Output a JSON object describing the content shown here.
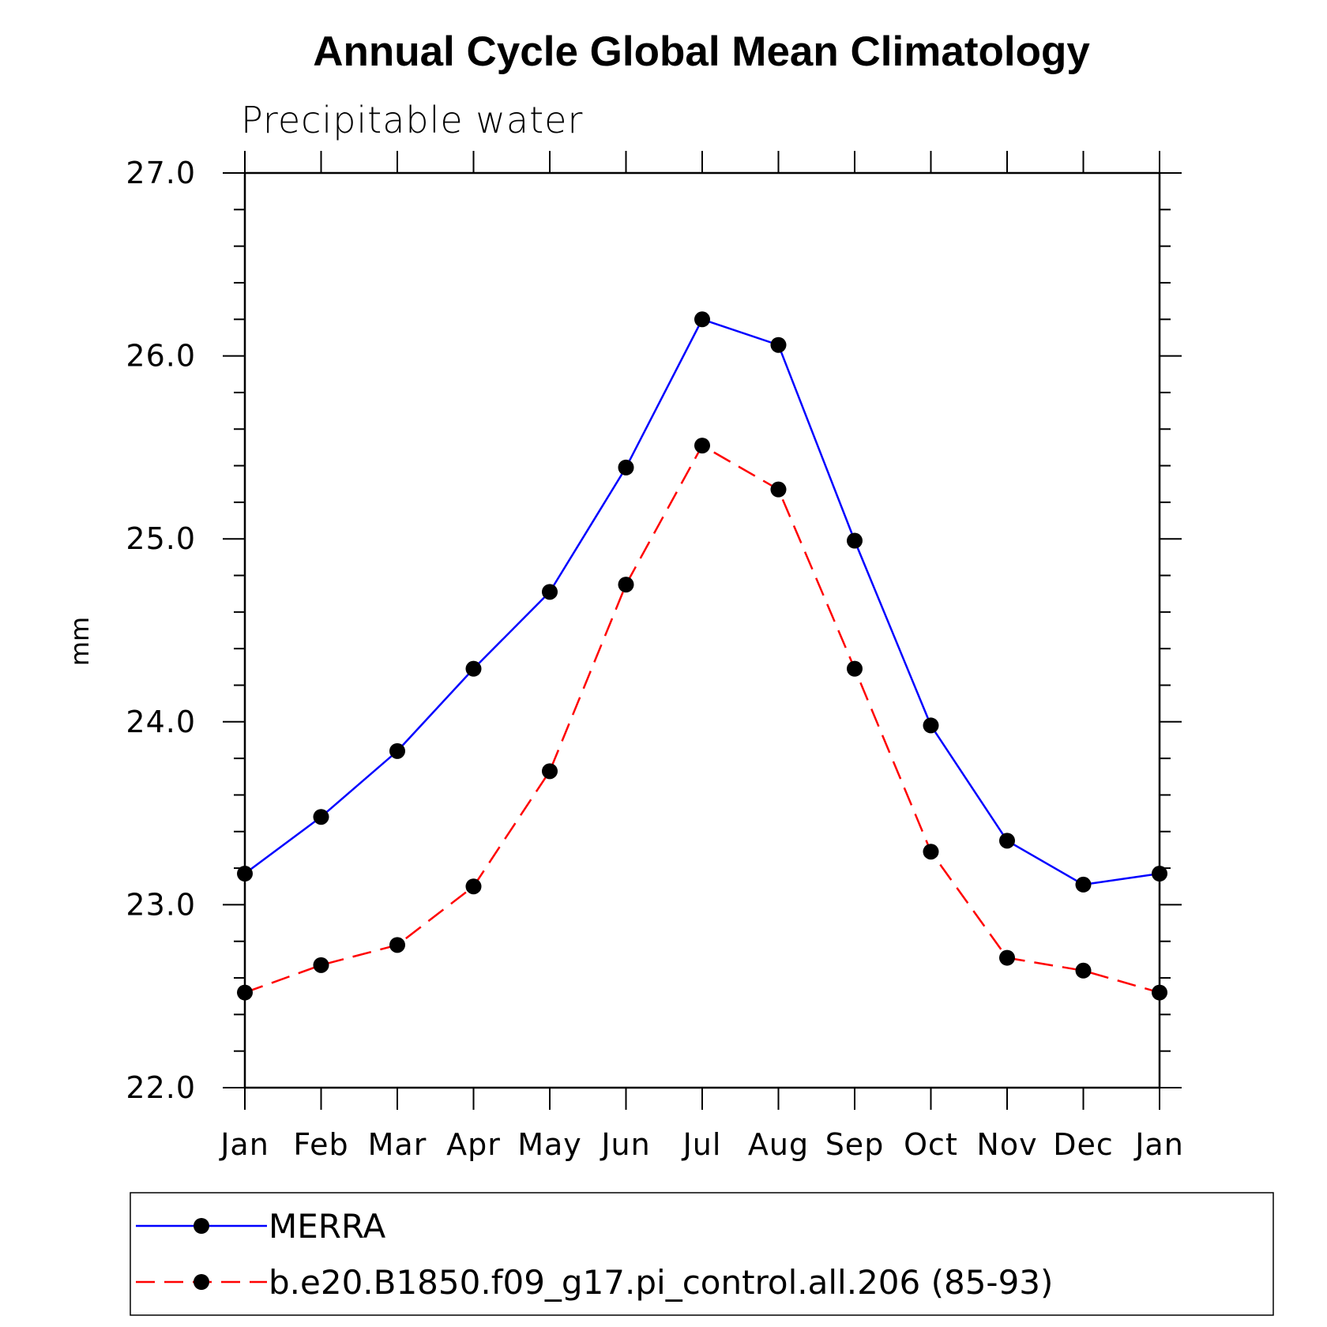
{
  "chart_data": {
    "type": "line",
    "title": "Annual Cycle Global Mean Climatology",
    "subtitle": "Precipitable water",
    "xlabel": "",
    "ylabel": "mm",
    "categories": [
      "Jan",
      "Feb",
      "Mar",
      "Apr",
      "May",
      "Jun",
      "Jul",
      "Aug",
      "Sep",
      "Oct",
      "Nov",
      "Dec",
      "Jan"
    ],
    "ylim": [
      22.0,
      27.0
    ],
    "yticks": [
      "22.0",
      "23.0",
      "24.0",
      "25.0",
      "26.0",
      "27.0"
    ],
    "grid": false,
    "legend_position": "bottom",
    "series": [
      {
        "name": "MERRA",
        "color": "#0000ff",
        "line_style": "solid",
        "marker": "filled-circle",
        "values": [
          23.17,
          23.48,
          23.84,
          24.29,
          24.71,
          25.39,
          26.2,
          26.06,
          24.99,
          23.98,
          23.35,
          23.11,
          23.17
        ]
      },
      {
        "name": "b.e20.B1850.f09_g17.pi_control.all.206 (85-93)",
        "color": "#ff0000",
        "line_style": "dashed",
        "marker": "filled-circle",
        "values": [
          22.52,
          22.67,
          22.78,
          23.1,
          23.73,
          24.75,
          25.51,
          25.27,
          24.29,
          23.29,
          22.71,
          22.64,
          22.52
        ]
      }
    ]
  }
}
